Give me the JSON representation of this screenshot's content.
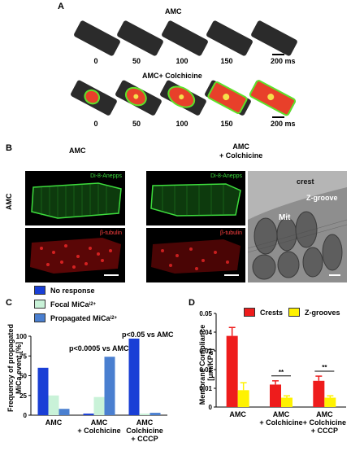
{
  "panelA": {
    "label": "A",
    "row1_title": "AMC",
    "row2_title": "AMC+ Colchicine",
    "times": [
      "0",
      "50",
      "100",
      "150",
      "200"
    ],
    "scale": "ms"
  },
  "panelB": {
    "label": "B",
    "col1": "AMC",
    "col2": "AMC\n+ Colchicine",
    "row": "AMC",
    "stain1": "Di-8-Anepps",
    "stain2": "β-tubulin",
    "em_crest": "crest",
    "em_mit": "Mit",
    "em_zgroove": "Z-groove"
  },
  "panelC": {
    "label": "C",
    "legend": [
      "No response",
      "Focal MiCa",
      "Propagated MiCa"
    ],
    "legend_colors": [
      "#1a3fd6",
      "#c9f2d8",
      "#4a7fd0"
    ],
    "ylabel": "Frequency of propagated MiCa event [%]",
    "ann1": "p<0.05 vs AMC",
    "ann2": "p<0.0005 vs AMC",
    "xcats": [
      "AMC",
      "AMC\n+ Colchicine",
      "AMC\nColchicine\n+ CCCP"
    ]
  },
  "panelD": {
    "label": "D",
    "legend": [
      "Crests",
      "Z-grooves"
    ],
    "legend_colors": [
      "#ee1c1c",
      "#fff200"
    ],
    "ylabel": "Membrane Compliance [μm/KPa]",
    "sig": "**",
    "xcats": [
      "AMC",
      "AMC\n+ Colchicine",
      "AMC\n+ Colchicine\n+ CCCP"
    ]
  },
  "chart_data": [
    {
      "type": "bar",
      "categories": [
        "AMC",
        "AMC + Colchicine",
        "AMC Colchicine + CCCP"
      ],
      "series": [
        {
          "name": "No response",
          "values": [
            60,
            2,
            97
          ]
        },
        {
          "name": "Focal MiCa",
          "values": [
            25,
            23,
            2
          ]
        },
        {
          "name": "Propagated MiCa",
          "values": [
            8,
            74,
            3
          ]
        }
      ],
      "ylabel": "Frequency of propagated MiCa event [%]",
      "ylim": [
        0,
        100
      ],
      "yticks": [
        "0",
        "25",
        "50",
        "75",
        "100"
      ]
    },
    {
      "type": "bar",
      "categories": [
        "AMC",
        "AMC + Colchicine",
        "AMC + Colchicine + CCCP"
      ],
      "series": [
        {
          "name": "Crests",
          "values": [
            0.038,
            0.012,
            0.014
          ],
          "errors": [
            0.0045,
            0.002,
            0.0025
          ]
        },
        {
          "name": "Z-grooves",
          "values": [
            0.009,
            0.005,
            0.005
          ],
          "errors": [
            0.004,
            0.001,
            0.001
          ]
        }
      ],
      "ylabel": "Membrane Compliance [μm/KPa]",
      "ylim": [
        0,
        0.05
      ],
      "yticks": [
        "0",
        "0.01",
        "0.02",
        "0.03",
        "0.04",
        "0.05"
      ]
    }
  ]
}
